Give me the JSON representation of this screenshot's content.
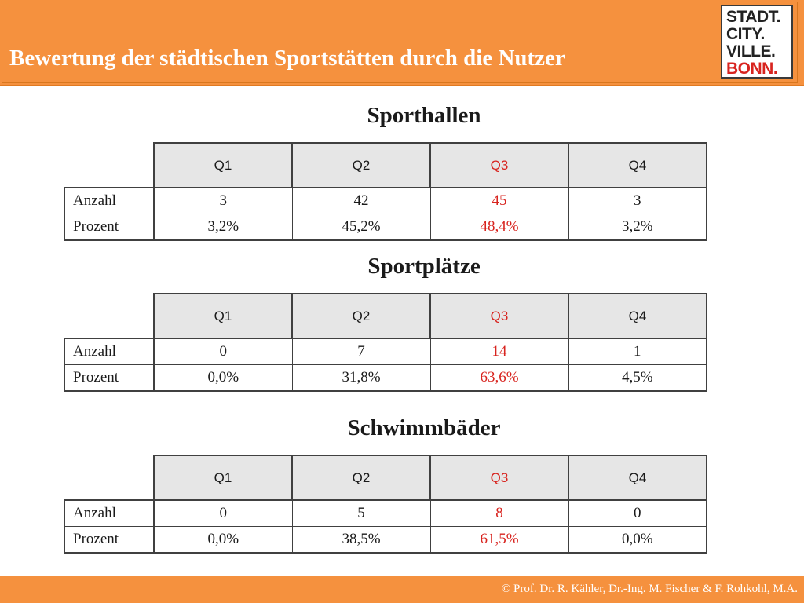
{
  "header": {
    "title": "Bewertung der städtischen Sportstätten durch die Nutzer",
    "logo_lines": [
      "STADT.",
      "CITY.",
      "VILLE.",
      "BONN."
    ]
  },
  "accent_color": "#d8241f",
  "tables": [
    {
      "title": "Sporthallen",
      "columns": [
        "Q1",
        "Q2",
        "Q3",
        "Q4"
      ],
      "rows": [
        {
          "label": "Anzahl",
          "values": [
            "3",
            "42",
            "45",
            "3"
          ]
        },
        {
          "label": "Prozent",
          "values": [
            "3,2%",
            "45,2%",
            "48,4%",
            "3,2%"
          ]
        }
      ]
    },
    {
      "title": "Sportplätze",
      "columns": [
        "Q1",
        "Q2",
        "Q3",
        "Q4"
      ],
      "rows": [
        {
          "label": "Anzahl",
          "values": [
            "0",
            "7",
            "14",
            "1"
          ]
        },
        {
          "label": "Prozent",
          "values": [
            "0,0%",
            "31,8%",
            "63,6%",
            "4,5%"
          ]
        }
      ]
    },
    {
      "title": "Schwimmbäder",
      "columns": [
        "Q1",
        "Q2",
        "Q3",
        "Q4"
      ],
      "rows": [
        {
          "label": "Anzahl",
          "values": [
            "0",
            "5",
            "8",
            "0"
          ]
        },
        {
          "label": "Prozent",
          "values": [
            "0,0%",
            "38,5%",
            "61,5%",
            "0,0%"
          ]
        }
      ]
    }
  ],
  "footer": {
    "text": "© Prof. Dr. R. Kähler, Dr.-Ing. M. Fischer & F. Rohkohl, M.A."
  }
}
